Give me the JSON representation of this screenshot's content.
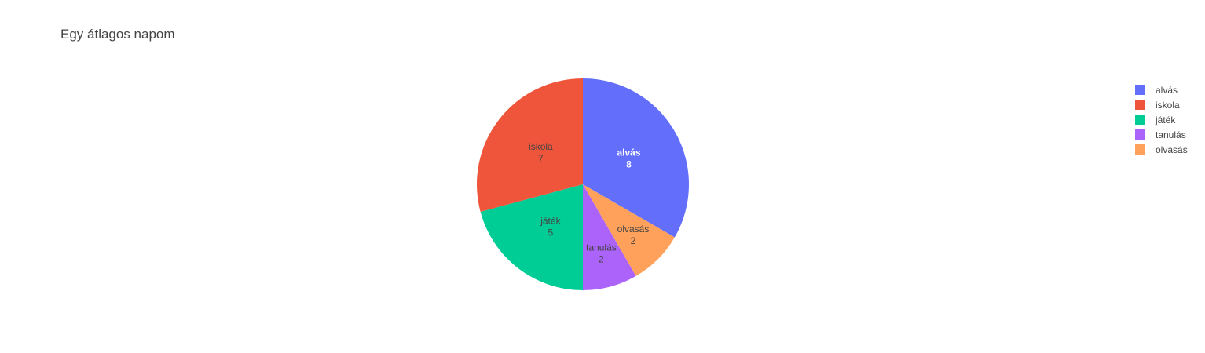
{
  "chart_data": {
    "type": "pie",
    "title": "Egy átlagos napom",
    "labels": [
      "alvás",
      "iskola",
      "játék",
      "tanulás",
      "olvasás"
    ],
    "values": [
      8,
      7,
      5,
      2,
      2
    ],
    "colors": [
      "#636efa",
      "#EF553B",
      "#00cc96",
      "#ab63fa",
      "#FFA15A"
    ],
    "label_colors": [
      "#ffffff",
      "#444444",
      "#444444",
      "#444444",
      "#444444"
    ],
    "slice_order": [
      "alvás",
      "olvasás",
      "tanulás",
      "játék",
      "iskola"
    ],
    "legend_order": [
      "alvás",
      "iskola",
      "játék",
      "tanulás",
      "olvasás"
    ],
    "legend_position": "top-right",
    "text_info": "label+value"
  }
}
